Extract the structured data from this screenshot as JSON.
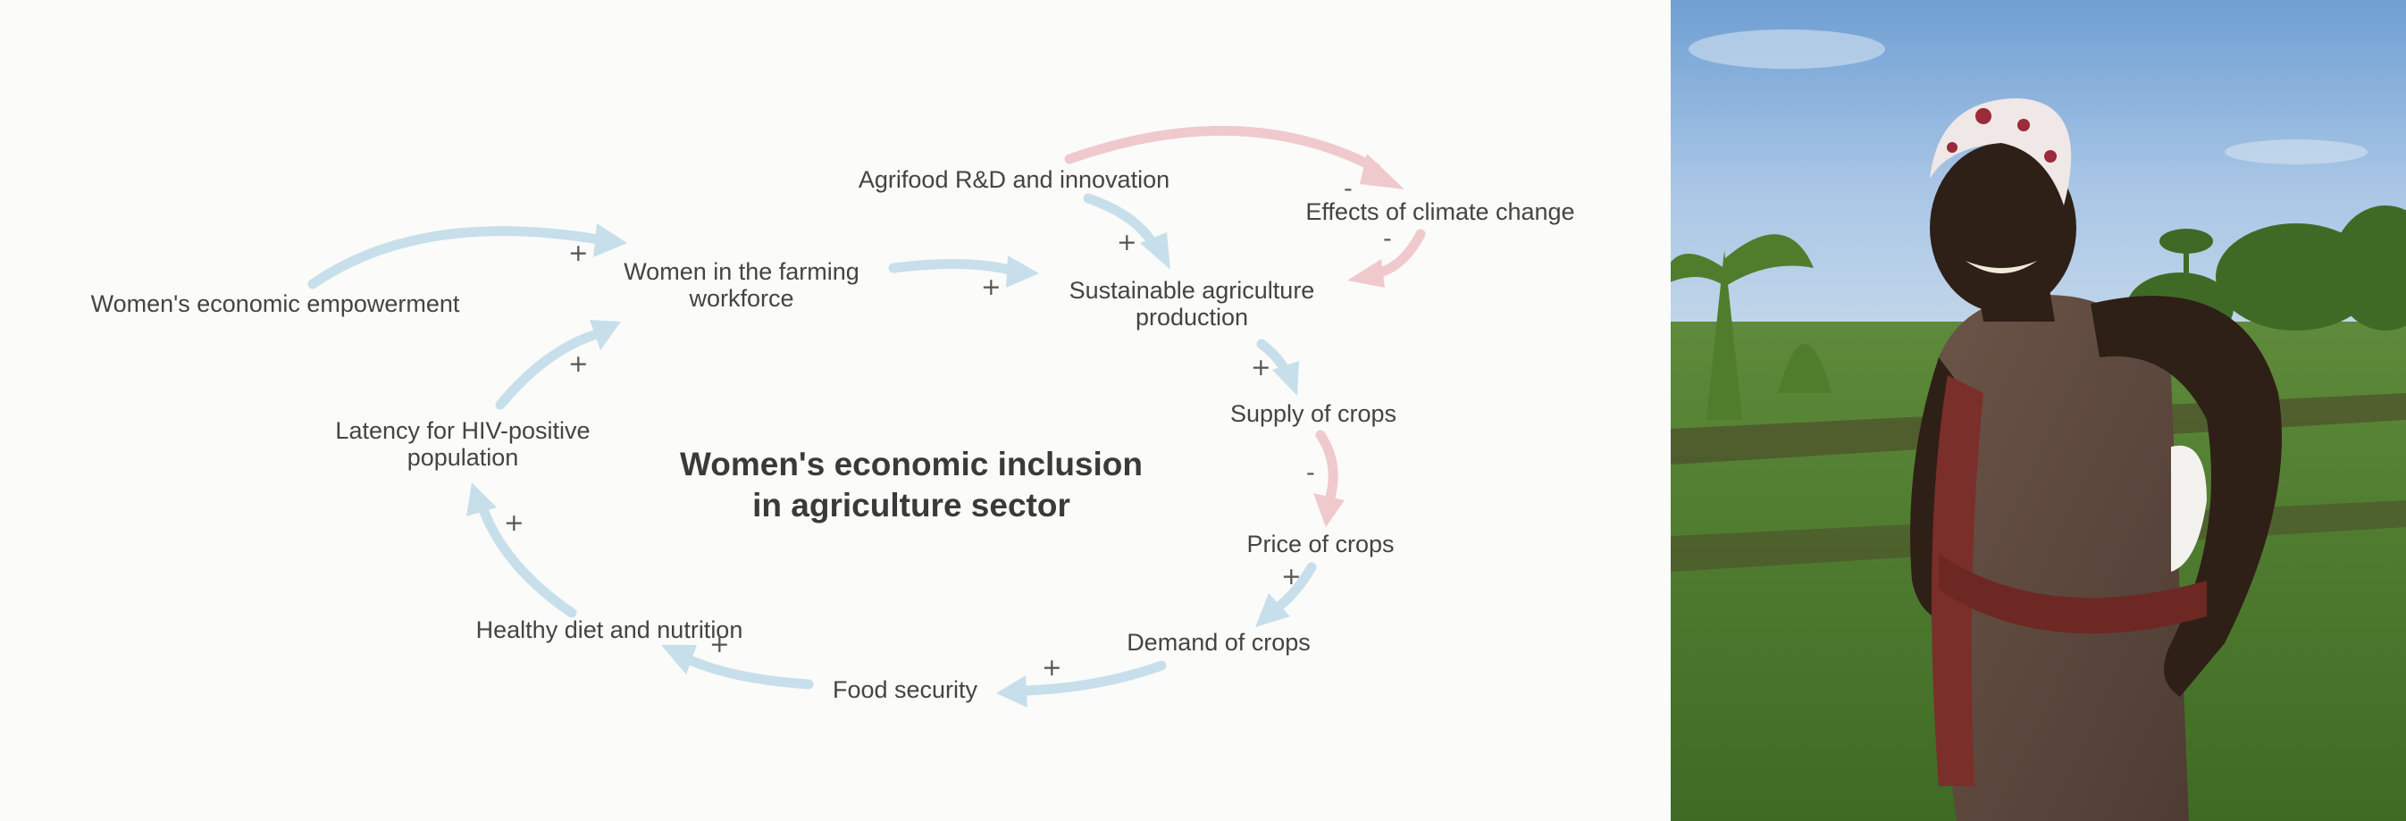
{
  "diagram": {
    "title_line1": "Women's economic inclusion",
    "title_line2": "in agriculture sector",
    "nodes": {
      "agrifood": "Agrifood R&D and innovation",
      "climate": "Effects of climate change",
      "empowerment": "Women's economic empowerment",
      "workforce_l1": "Women in the farming",
      "workforce_l2": "workforce",
      "sustainable_l1": "Sustainable agriculture",
      "sustainable_l2": "production",
      "supply": "Supply of crops",
      "price": "Price of crops",
      "demand": "Demand of crops",
      "food": "Food security",
      "diet": "Healthy diet and nutrition",
      "latency_l1": "Latency for HIV-positive",
      "latency_l2": "population"
    },
    "links": {
      "empowerment_workforce": "+",
      "workforce_sustainable": "+",
      "agrifood_sustainable": "+",
      "agrifood_climate": "-",
      "climate_sustainable": "-",
      "sustainable_supply": "+",
      "supply_price": "-",
      "price_demand": "+",
      "demand_food": "+",
      "food_diet": "+",
      "diet_latency": "+",
      "latency_workforce": "+"
    },
    "colors": {
      "positive_link": "#c7dfeb",
      "negative_link": "#f0c9cd"
    }
  },
  "photo": {
    "subject": "woman-farmer-photo"
  }
}
